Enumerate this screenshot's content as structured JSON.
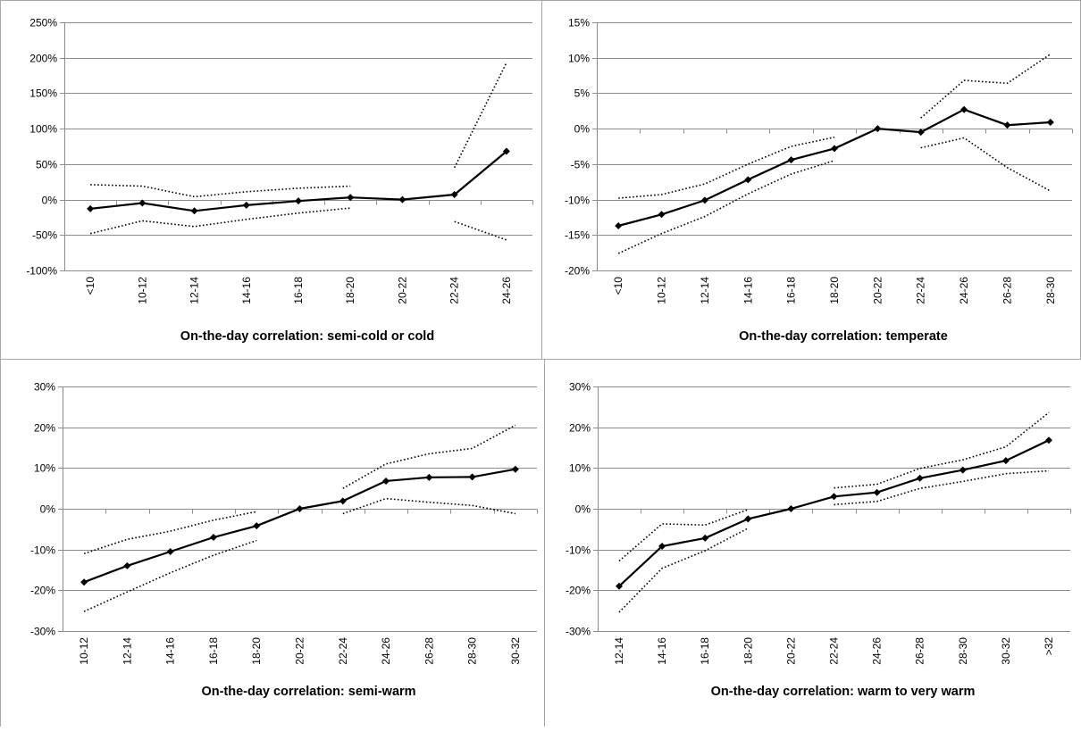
{
  "chart_data": [
    {
      "type": "line",
      "title": "On-the-day correlation: semi-cold or cold",
      "categories": [
        "<10",
        "10-12",
        "12-14",
        "14-16",
        "16-18",
        "18-20",
        "20-22",
        "22-24",
        "24-26"
      ],
      "ylim": [
        -100,
        250
      ],
      "yticks": [
        {
          "value": -100,
          "label": "-100%"
        },
        {
          "value": -50,
          "label": "-50%"
        },
        {
          "value": 0,
          "label": "0%"
        },
        {
          "value": 50,
          "label": "50%"
        },
        {
          "value": 100,
          "label": "100%"
        },
        {
          "value": 150,
          "label": "150%"
        },
        {
          "value": 200,
          "label": "200%"
        },
        {
          "value": 250,
          "label": "250%"
        }
      ],
      "grid": true,
      "series": [
        {
          "color": "#000000",
          "style": "solid",
          "markers": true,
          "values": [
            -13,
            -5,
            -16,
            -8,
            -2,
            3,
            0,
            7,
            68
          ]
        },
        {
          "color": "#000000",
          "style": "dotted",
          "markers": false,
          "values": [
            21,
            19,
            4,
            11,
            16,
            19,
            null,
            45,
            193
          ]
        },
        {
          "color": "#000000",
          "style": "dotted",
          "markers": false,
          "values": [
            -48,
            -30,
            -38,
            -28,
            -19,
            -12,
            null,
            -31,
            -57
          ]
        }
      ]
    },
    {
      "type": "line",
      "title": "On-the-day correlation: temperate",
      "categories": [
        "<10",
        "10-12",
        "12-14",
        "14-16",
        "16-18",
        "18-20",
        "20-22",
        "22-24",
        "24-26",
        "26-28",
        "28-30"
      ],
      "ylim": [
        -20,
        15
      ],
      "yticks": [
        {
          "value": -20,
          "label": "-20%"
        },
        {
          "value": -15,
          "label": "-15%"
        },
        {
          "value": -10,
          "label": "-10%"
        },
        {
          "value": -5,
          "label": "-5%"
        },
        {
          "value": 0,
          "label": "0%"
        },
        {
          "value": 5,
          "label": "5%"
        },
        {
          "value": 10,
          "label": "10%"
        },
        {
          "value": 15,
          "label": "15%"
        }
      ],
      "grid": true,
      "series": [
        {
          "color": "#000000",
          "style": "solid",
          "markers": true,
          "values": [
            -13.7,
            -12.1,
            -10.1,
            -7.2,
            -4.4,
            -2.8,
            0,
            -0.5,
            2.7,
            0.5,
            0.9
          ]
        },
        {
          "color": "#000000",
          "style": "dotted",
          "markers": false,
          "values": [
            -9.8,
            -9.3,
            -7.8,
            -5.0,
            -2.5,
            -1.2,
            null,
            1.5,
            6.8,
            6.4,
            10.5
          ]
        },
        {
          "color": "#000000",
          "style": "dotted",
          "markers": false,
          "values": [
            -17.6,
            -14.8,
            -12.4,
            -9.2,
            -6.4,
            -4.5,
            null,
            -2.7,
            -1.3,
            -5.5,
            -8.8
          ]
        }
      ]
    },
    {
      "type": "line",
      "title": "On-the-day correlation: semi-warm",
      "categories": [
        "10-12",
        "12-14",
        "14-16",
        "16-18",
        "18-20",
        "20-22",
        "22-24",
        "24-26",
        "26-28",
        "28-30",
        "30-32"
      ],
      "ylim": [
        -30,
        30
      ],
      "yticks": [
        {
          "value": -30,
          "label": "-30%"
        },
        {
          "value": -20,
          "label": "-20%"
        },
        {
          "value": -10,
          "label": "-10%"
        },
        {
          "value": 0,
          "label": "0%"
        },
        {
          "value": 10,
          "label": "10%"
        },
        {
          "value": 20,
          "label": "20%"
        },
        {
          "value": 30,
          "label": "30%"
        }
      ],
      "grid": true,
      "series": [
        {
          "color": "#000000",
          "style": "solid",
          "markers": true,
          "values": [
            -18,
            -14,
            -10.5,
            -7,
            -4.2,
            0,
            1.9,
            6.8,
            7.7,
            7.8,
            9.7
          ]
        },
        {
          "color": "#000000",
          "style": "dotted",
          "markers": false,
          "values": [
            -11,
            -7.5,
            -5.5,
            -2.8,
            -0.7,
            null,
            5,
            11,
            13.5,
            14.8,
            20.5
          ]
        },
        {
          "color": "#000000",
          "style": "dotted",
          "markers": false,
          "values": [
            -25.2,
            -20.4,
            -15.7,
            -11.4,
            -7.8,
            null,
            -1.2,
            2.5,
            1.6,
            0.8,
            -1.2
          ]
        }
      ]
    },
    {
      "type": "line",
      "title": "On-the-day correlation: warm to very warm",
      "categories": [
        "12-14",
        "14-16",
        "16-18",
        "18-20",
        "20-22",
        "22-24",
        "24-26",
        "26-28",
        "28-30",
        "30-32",
        ">32"
      ],
      "ylim": [
        -30,
        30
      ],
      "yticks": [
        {
          "value": -30,
          "label": "-30%"
        },
        {
          "value": -20,
          "label": "-20%"
        },
        {
          "value": -10,
          "label": "-10%"
        },
        {
          "value": 0,
          "label": "0%"
        },
        {
          "value": 10,
          "label": "10%"
        },
        {
          "value": 20,
          "label": "20%"
        },
        {
          "value": 30,
          "label": "30%"
        }
      ],
      "grid": true,
      "series": [
        {
          "color": "#000000",
          "style": "solid",
          "markers": true,
          "values": [
            -19,
            -9.2,
            -7.2,
            -2.5,
            0,
            3,
            4,
            7.5,
            9.5,
            11.8,
            16.8
          ]
        },
        {
          "color": "#000000",
          "style": "dotted",
          "markers": false,
          "values": [
            -12.8,
            -3.7,
            -4,
            -0.2,
            null,
            5.1,
            6,
            9.9,
            12,
            15.2,
            23.6
          ]
        },
        {
          "color": "#000000",
          "style": "dotted",
          "markers": false,
          "values": [
            -25.4,
            -14.6,
            -10.3,
            -4.8,
            null,
            1,
            1.8,
            5,
            6.7,
            8.6,
            9.3
          ]
        }
      ]
    }
  ]
}
